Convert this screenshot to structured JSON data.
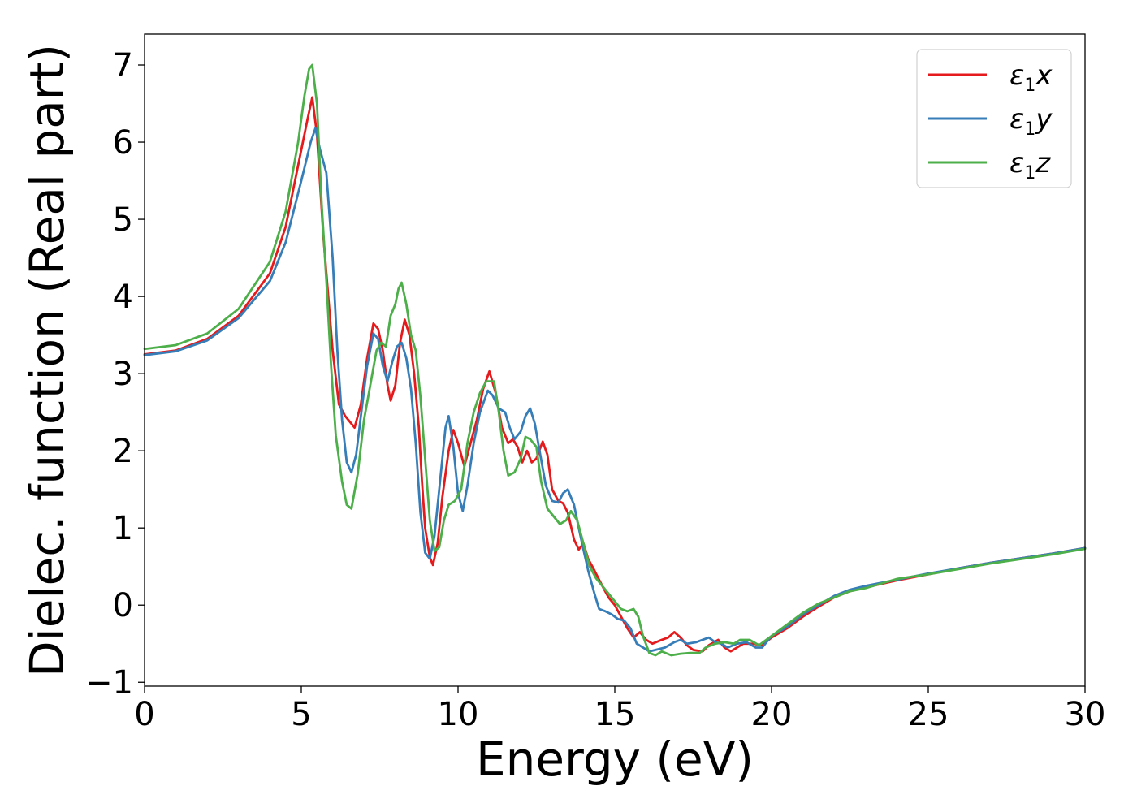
{
  "chart_data": {
    "type": "line",
    "xlabel": "Energy (eV)",
    "ylabel": "Dielec. function (Real part)",
    "xlim": [
      0,
      30
    ],
    "ylim": [
      -1.05,
      7.4
    ],
    "xticks": [
      0,
      5,
      10,
      15,
      20,
      25,
      30
    ],
    "yticks": [
      -1,
      0,
      1,
      2,
      3,
      4,
      5,
      6,
      7
    ],
    "xtick_labels": [
      "0",
      "5",
      "10",
      "15",
      "20",
      "25",
      "30"
    ],
    "ytick_labels": [
      "−1",
      "0",
      "1",
      "2",
      "3",
      "4",
      "5",
      "6",
      "7"
    ],
    "grid": false,
    "legend_position": "top-right",
    "series": [
      {
        "name": "ε₁x",
        "legend_main": "ε",
        "legend_sub": "1",
        "legend_tail": "x",
        "color": "#e41a1c",
        "points": [
          [
            0,
            3.25
          ],
          [
            1,
            3.3
          ],
          [
            2,
            3.45
          ],
          [
            3,
            3.75
          ],
          [
            4,
            4.3
          ],
          [
            4.5,
            4.9
          ],
          [
            5,
            5.9
          ],
          [
            5.2,
            6.3
          ],
          [
            5.35,
            6.58
          ],
          [
            5.5,
            6.1
          ],
          [
            5.7,
            4.8
          ],
          [
            6.0,
            3.3
          ],
          [
            6.2,
            2.6
          ],
          [
            6.4,
            2.45
          ],
          [
            6.5,
            2.4
          ],
          [
            6.7,
            2.3
          ],
          [
            6.9,
            2.6
          ],
          [
            7.1,
            3.2
          ],
          [
            7.3,
            3.65
          ],
          [
            7.45,
            3.58
          ],
          [
            7.6,
            3.3
          ],
          [
            7.75,
            2.85
          ],
          [
            7.85,
            2.65
          ],
          [
            8.0,
            2.85
          ],
          [
            8.15,
            3.4
          ],
          [
            8.3,
            3.7
          ],
          [
            8.45,
            3.5
          ],
          [
            8.6,
            3.0
          ],
          [
            8.75,
            2.3
          ],
          [
            8.85,
            1.6
          ],
          [
            8.95,
            1.0
          ],
          [
            9.1,
            0.62
          ],
          [
            9.2,
            0.52
          ],
          [
            9.35,
            0.8
          ],
          [
            9.5,
            1.4
          ],
          [
            9.7,
            2.0
          ],
          [
            9.85,
            2.27
          ],
          [
            10.0,
            2.1
          ],
          [
            10.2,
            1.8
          ],
          [
            10.4,
            2.1
          ],
          [
            10.6,
            2.4
          ],
          [
            10.8,
            2.8
          ],
          [
            11.0,
            3.03
          ],
          [
            11.2,
            2.75
          ],
          [
            11.4,
            2.3
          ],
          [
            11.6,
            2.1
          ],
          [
            11.75,
            2.15
          ],
          [
            11.9,
            2.05
          ],
          [
            12.05,
            1.85
          ],
          [
            12.2,
            2.0
          ],
          [
            12.35,
            1.85
          ],
          [
            12.5,
            1.9
          ],
          [
            12.7,
            2.12
          ],
          [
            12.85,
            1.95
          ],
          [
            13.0,
            1.5
          ],
          [
            13.2,
            1.35
          ],
          [
            13.35,
            1.32
          ],
          [
            13.5,
            1.2
          ],
          [
            13.7,
            0.85
          ],
          [
            13.85,
            0.72
          ],
          [
            14.0,
            0.8
          ],
          [
            14.15,
            0.6
          ],
          [
            14.35,
            0.45
          ],
          [
            14.6,
            0.25
          ],
          [
            14.8,
            0.1
          ],
          [
            15.0,
            0.0
          ],
          [
            15.2,
            -0.15
          ],
          [
            15.4,
            -0.3
          ],
          [
            15.6,
            -0.42
          ],
          [
            15.8,
            -0.35
          ],
          [
            16.0,
            -0.45
          ],
          [
            16.2,
            -0.5
          ],
          [
            16.5,
            -0.45
          ],
          [
            16.7,
            -0.42
          ],
          [
            16.9,
            -0.35
          ],
          [
            17.1,
            -0.42
          ],
          [
            17.3,
            -0.52
          ],
          [
            17.5,
            -0.58
          ],
          [
            17.8,
            -0.6
          ],
          [
            18.0,
            -0.52
          ],
          [
            18.3,
            -0.45
          ],
          [
            18.5,
            -0.55
          ],
          [
            18.7,
            -0.6
          ],
          [
            18.9,
            -0.55
          ],
          [
            19.1,
            -0.5
          ],
          [
            19.4,
            -0.5
          ],
          [
            19.7,
            -0.52
          ],
          [
            20.0,
            -0.42
          ],
          [
            20.5,
            -0.3
          ],
          [
            21.0,
            -0.15
          ],
          [
            21.5,
            -0.02
          ],
          [
            22.0,
            0.1
          ],
          [
            22.5,
            0.18
          ],
          [
            23.0,
            0.23
          ],
          [
            24.0,
            0.32
          ],
          [
            25.0,
            0.4
          ],
          [
            26.0,
            0.48
          ],
          [
            27.0,
            0.55
          ],
          [
            28.0,
            0.61
          ],
          [
            29.0,
            0.67
          ],
          [
            30.0,
            0.74
          ]
        ]
      },
      {
        "name": "ε₁y",
        "legend_main": "ε",
        "legend_sub": "1",
        "legend_tail": "y",
        "color": "#377eb8",
        "points": [
          [
            0,
            3.24
          ],
          [
            1,
            3.29
          ],
          [
            2,
            3.43
          ],
          [
            3,
            3.72
          ],
          [
            4,
            4.2
          ],
          [
            4.5,
            4.7
          ],
          [
            5.0,
            5.5
          ],
          [
            5.3,
            6.0
          ],
          [
            5.45,
            6.18
          ],
          [
            5.6,
            5.9
          ],
          [
            5.8,
            5.6
          ],
          [
            6.0,
            4.5
          ],
          [
            6.15,
            3.3
          ],
          [
            6.3,
            2.4
          ],
          [
            6.45,
            1.85
          ],
          [
            6.6,
            1.72
          ],
          [
            6.75,
            1.95
          ],
          [
            6.9,
            2.45
          ],
          [
            7.1,
            3.1
          ],
          [
            7.3,
            3.52
          ],
          [
            7.45,
            3.45
          ],
          [
            7.6,
            3.1
          ],
          [
            7.75,
            2.9
          ],
          [
            7.9,
            3.15
          ],
          [
            8.05,
            3.35
          ],
          [
            8.2,
            3.4
          ],
          [
            8.35,
            3.2
          ],
          [
            8.5,
            2.8
          ],
          [
            8.65,
            2.1
          ],
          [
            8.8,
            1.2
          ],
          [
            8.95,
            0.68
          ],
          [
            9.1,
            0.6
          ],
          [
            9.25,
            0.9
          ],
          [
            9.45,
            1.7
          ],
          [
            9.6,
            2.3
          ],
          [
            9.7,
            2.45
          ],
          [
            9.85,
            2.05
          ],
          [
            10.0,
            1.45
          ],
          [
            10.15,
            1.22
          ],
          [
            10.3,
            1.55
          ],
          [
            10.5,
            2.1
          ],
          [
            10.7,
            2.5
          ],
          [
            10.95,
            2.78
          ],
          [
            11.1,
            2.72
          ],
          [
            11.3,
            2.55
          ],
          [
            11.5,
            2.5
          ],
          [
            11.65,
            2.3
          ],
          [
            11.8,
            2.15
          ],
          [
            12.0,
            2.25
          ],
          [
            12.15,
            2.45
          ],
          [
            12.3,
            2.55
          ],
          [
            12.45,
            2.35
          ],
          [
            12.6,
            2.0
          ],
          [
            12.8,
            1.55
          ],
          [
            13.0,
            1.35
          ],
          [
            13.2,
            1.33
          ],
          [
            13.35,
            1.45
          ],
          [
            13.5,
            1.5
          ],
          [
            13.7,
            1.3
          ],
          [
            13.85,
            1.0
          ],
          [
            14.0,
            0.72
          ],
          [
            14.15,
            0.45
          ],
          [
            14.35,
            0.15
          ],
          [
            14.5,
            -0.05
          ],
          [
            14.7,
            -0.08
          ],
          [
            14.9,
            -0.12
          ],
          [
            15.1,
            -0.18
          ],
          [
            15.3,
            -0.2
          ],
          [
            15.5,
            -0.3
          ],
          [
            15.7,
            -0.5
          ],
          [
            15.9,
            -0.55
          ],
          [
            16.1,
            -0.6
          ],
          [
            16.3,
            -0.58
          ],
          [
            16.6,
            -0.55
          ],
          [
            16.9,
            -0.48
          ],
          [
            17.1,
            -0.45
          ],
          [
            17.3,
            -0.5
          ],
          [
            17.6,
            -0.48
          ],
          [
            17.8,
            -0.45
          ],
          [
            18.0,
            -0.42
          ],
          [
            18.2,
            -0.48
          ],
          [
            18.4,
            -0.5
          ],
          [
            18.6,
            -0.55
          ],
          [
            18.9,
            -0.5
          ],
          [
            19.2,
            -0.48
          ],
          [
            19.5,
            -0.55
          ],
          [
            19.7,
            -0.55
          ],
          [
            20.0,
            -0.4
          ],
          [
            20.5,
            -0.28
          ],
          [
            21.0,
            -0.12
          ],
          [
            21.5,
            0.0
          ],
          [
            22.0,
            0.12
          ],
          [
            22.5,
            0.2
          ],
          [
            23.0,
            0.25
          ],
          [
            24.0,
            0.33
          ],
          [
            25.0,
            0.41
          ],
          [
            26.0,
            0.48
          ],
          [
            27.0,
            0.55
          ],
          [
            28.0,
            0.61
          ],
          [
            29.0,
            0.67
          ],
          [
            30.0,
            0.74
          ]
        ]
      },
      {
        "name": "ε₁z",
        "legend_main": "ε",
        "legend_sub": "1",
        "legend_tail": "z",
        "color": "#4daf4a",
        "points": [
          [
            0,
            3.32
          ],
          [
            1,
            3.37
          ],
          [
            2,
            3.52
          ],
          [
            3,
            3.84
          ],
          [
            4,
            4.45
          ],
          [
            4.5,
            5.1
          ],
          [
            4.9,
            6.0
          ],
          [
            5.1,
            6.6
          ],
          [
            5.25,
            6.95
          ],
          [
            5.35,
            7.0
          ],
          [
            5.5,
            6.5
          ],
          [
            5.65,
            5.2
          ],
          [
            5.8,
            4.2
          ],
          [
            5.95,
            3.1
          ],
          [
            6.1,
            2.2
          ],
          [
            6.3,
            1.6
          ],
          [
            6.45,
            1.3
          ],
          [
            6.6,
            1.25
          ],
          [
            6.8,
            1.7
          ],
          [
            7.0,
            2.4
          ],
          [
            7.2,
            2.85
          ],
          [
            7.4,
            3.3
          ],
          [
            7.55,
            3.4
          ],
          [
            7.7,
            3.35
          ],
          [
            7.85,
            3.75
          ],
          [
            8.0,
            3.9
          ],
          [
            8.1,
            4.1
          ],
          [
            8.2,
            4.18
          ],
          [
            8.35,
            3.9
          ],
          [
            8.5,
            3.5
          ],
          [
            8.65,
            3.3
          ],
          [
            8.8,
            2.7
          ],
          [
            8.95,
            1.9
          ],
          [
            9.1,
            1.1
          ],
          [
            9.25,
            0.7
          ],
          [
            9.4,
            0.75
          ],
          [
            9.55,
            1.1
          ],
          [
            9.7,
            1.3
          ],
          [
            9.9,
            1.35
          ],
          [
            10.1,
            1.5
          ],
          [
            10.3,
            2.1
          ],
          [
            10.5,
            2.5
          ],
          [
            10.7,
            2.75
          ],
          [
            10.9,
            2.9
          ],
          [
            11.15,
            2.9
          ],
          [
            11.3,
            2.5
          ],
          [
            11.45,
            2.0
          ],
          [
            11.6,
            1.68
          ],
          [
            11.8,
            1.72
          ],
          [
            12.0,
            1.9
          ],
          [
            12.15,
            2.18
          ],
          [
            12.3,
            2.15
          ],
          [
            12.5,
            2.05
          ],
          [
            12.65,
            1.6
          ],
          [
            12.85,
            1.25
          ],
          [
            13.05,
            1.15
          ],
          [
            13.25,
            1.05
          ],
          [
            13.45,
            1.1
          ],
          [
            13.6,
            1.22
          ],
          [
            13.8,
            1.1
          ],
          [
            14.0,
            0.8
          ],
          [
            14.2,
            0.5
          ],
          [
            14.4,
            0.35
          ],
          [
            14.6,
            0.25
          ],
          [
            14.8,
            0.15
          ],
          [
            15.0,
            0.05
          ],
          [
            15.2,
            -0.05
          ],
          [
            15.4,
            -0.08
          ],
          [
            15.6,
            -0.05
          ],
          [
            15.75,
            -0.15
          ],
          [
            15.9,
            -0.4
          ],
          [
            16.1,
            -0.62
          ],
          [
            16.3,
            -0.65
          ],
          [
            16.5,
            -0.6
          ],
          [
            16.8,
            -0.65
          ],
          [
            17.1,
            -0.63
          ],
          [
            17.4,
            -0.62
          ],
          [
            17.7,
            -0.62
          ],
          [
            17.9,
            -0.55
          ],
          [
            18.2,
            -0.5
          ],
          [
            18.5,
            -0.48
          ],
          [
            18.8,
            -0.5
          ],
          [
            19.0,
            -0.45
          ],
          [
            19.3,
            -0.45
          ],
          [
            19.6,
            -0.52
          ],
          [
            20.0,
            -0.4
          ],
          [
            20.5,
            -0.25
          ],
          [
            21.0,
            -0.1
          ],
          [
            21.5,
            0.02
          ],
          [
            22.0,
            0.1
          ],
          [
            22.5,
            0.18
          ],
          [
            23.0,
            0.22
          ],
          [
            24.0,
            0.34
          ],
          [
            25.0,
            0.4
          ],
          [
            26.0,
            0.47
          ],
          [
            27.0,
            0.54
          ],
          [
            28.0,
            0.6
          ],
          [
            29.0,
            0.66
          ],
          [
            30.0,
            0.73
          ]
        ]
      }
    ]
  }
}
